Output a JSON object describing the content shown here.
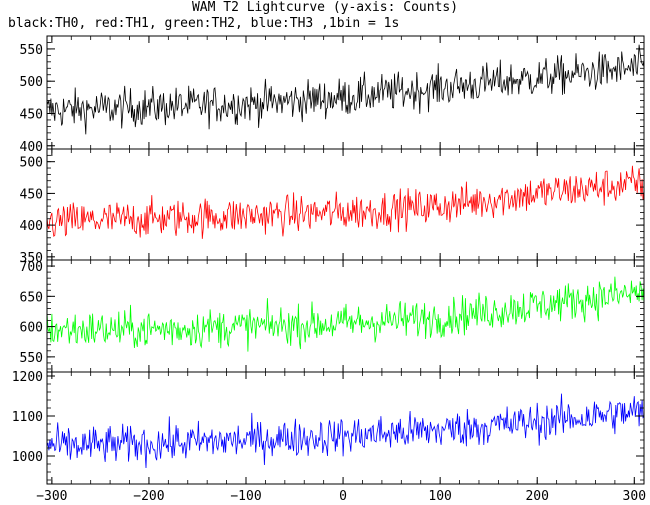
{
  "chart_data": {
    "type": "line",
    "title": "WAM T2 Lightcurve (y-axis: Counts)",
    "subtitle": "black:TH0, red:TH1, green:TH2, blue:TH3 ,1bin = 1s",
    "xlabel": "",
    "ylabel": "",
    "xlim": [
      -305,
      310
    ],
    "x_ticks": [
      -300,
      -200,
      -100,
      0,
      100,
      200,
      300
    ],
    "panels": [
      {
        "name": "TH0",
        "color": "#000000",
        "ylim": [
          395,
          570
        ],
        "y_ticks": [
          400,
          450,
          500,
          550
        ],
        "trend": {
          "x": [
            -300,
            -200,
            -100,
            0,
            100,
            200,
            300
          ],
          "y": [
            455,
            460,
            465,
            475,
            490,
            505,
            520
          ]
        }
      },
      {
        "name": "TH1",
        "color": "#ff0000",
        "ylim": [
          345,
          520
        ],
        "y_ticks": [
          350,
          400,
          450,
          500
        ],
        "trend": {
          "x": [
            -300,
            -200,
            -100,
            0,
            100,
            200,
            300
          ],
          "y": [
            405,
            410,
            415,
            420,
            430,
            450,
            465
          ]
        }
      },
      {
        "name": "TH2",
        "color": "#00ff00",
        "ylim": [
          525,
          710
        ],
        "y_ticks": [
          550,
          600,
          650,
          700
        ],
        "trend": {
          "x": [
            -300,
            -200,
            -100,
            0,
            100,
            200,
            300
          ],
          "y": [
            595,
            595,
            600,
            605,
            615,
            635,
            655
          ]
        }
      },
      {
        "name": "TH3",
        "color": "#0000ff",
        "ylim": [
          930,
          1210
        ],
        "y_ticks": [
          1000,
          1100,
          1200
        ],
        "trend": {
          "x": [
            -300,
            -200,
            -100,
            0,
            100,
            200,
            300
          ],
          "y": [
            1025,
            1030,
            1040,
            1050,
            1065,
            1085,
            1110
          ]
        }
      }
    ]
  }
}
